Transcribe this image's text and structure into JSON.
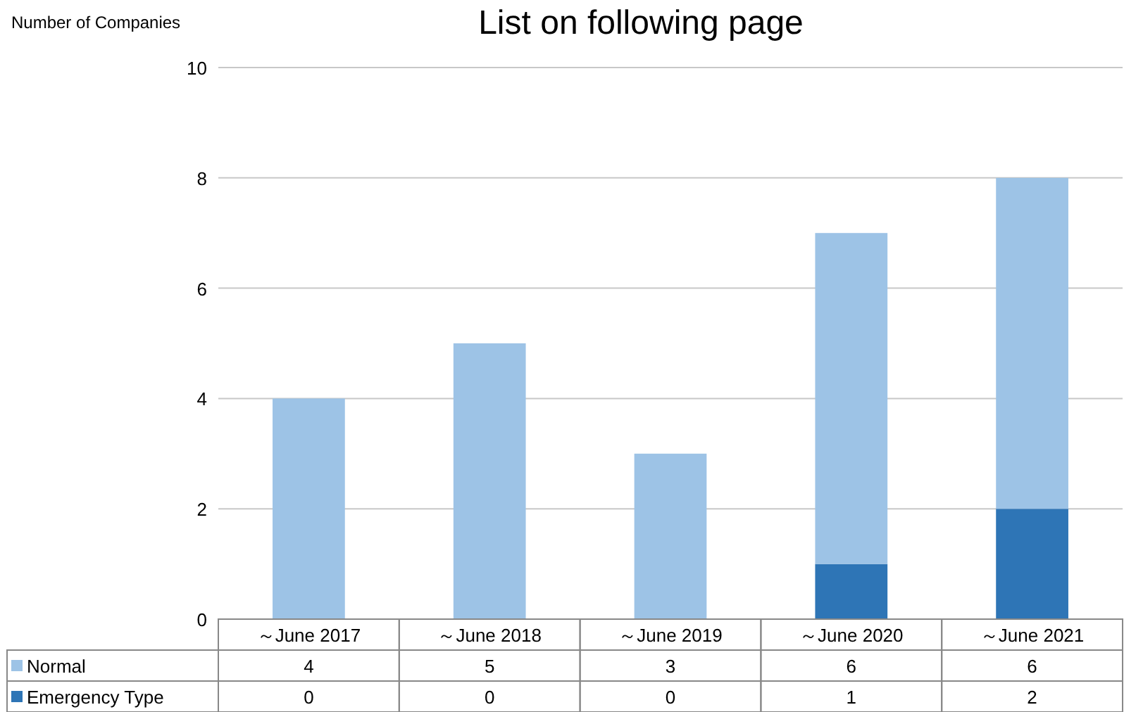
{
  "chart_data": {
    "type": "bar",
    "title": "List on following page",
    "ylabel": "Number of Companies",
    "categories": [
      "～June 2017",
      "～June 2018",
      "～June 2019",
      "～June 2020",
      "～June 2021"
    ],
    "series": [
      {
        "name": "Emergency Type",
        "color": "#2e75b6",
        "values": [
          0,
          0,
          0,
          1,
          2
        ]
      },
      {
        "name": "Normal",
        "color": "#9dc3e6",
        "values": [
          4,
          5,
          3,
          6,
          6
        ]
      }
    ],
    "stacked": true,
    "ylim": [
      0,
      10
    ],
    "yticks": [
      0,
      2,
      4,
      6,
      8,
      10
    ],
    "grid": "y",
    "legend": "bottom",
    "data_labels": true
  }
}
